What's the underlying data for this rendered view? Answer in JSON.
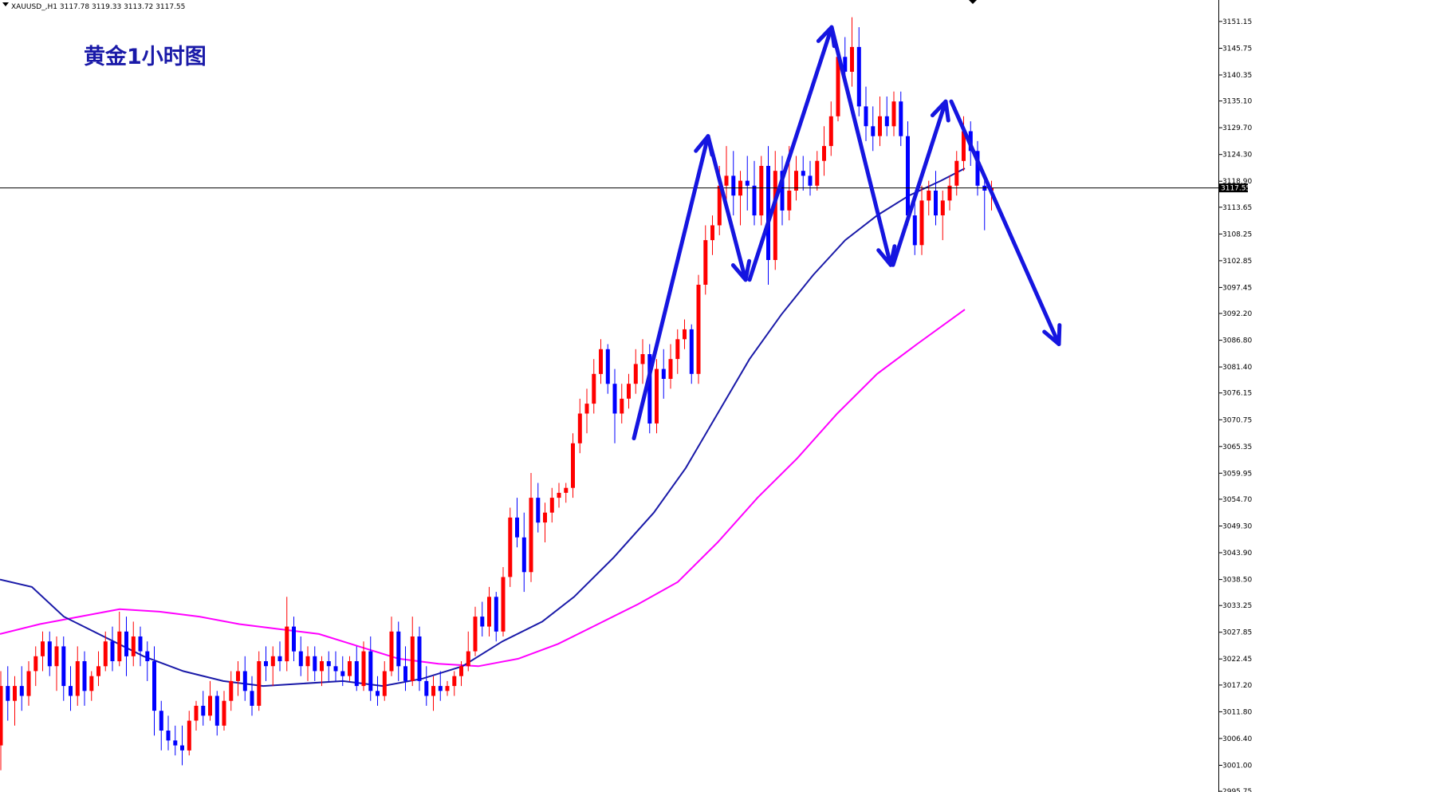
{
  "header": {
    "symbol": "XAUUSD_,H1",
    "open": "3117.78",
    "high": "3119.33",
    "low": "3113.72",
    "close": "3117.55"
  },
  "chart_data": {
    "type": "candlestick",
    "title": "黄金1小时图",
    "ylim": [
      2998.5,
      3155.0
    ],
    "y_tick_labels": [
      "3151.15",
      "3145.75",
      "3140.35",
      "3135.10",
      "3129.70",
      "3124.30",
      "3118.90",
      "3113.65",
      "3108.25",
      "3102.85",
      "3097.45",
      "3092.20",
      "3086.80",
      "3081.40",
      "3076.15",
      "3070.75",
      "3065.35",
      "3059.95",
      "3054.70",
      "3049.30",
      "3043.90",
      "3038.50",
      "3033.25",
      "3027.85",
      "3022.45",
      "3017.20",
      "3011.80",
      "3006.40",
      "3001.00",
      "2995.75"
    ],
    "current_price": 3117.55,
    "current_price_label": "3117.55",
    "colors": {
      "up": "#ff0000",
      "down": "#0000ff",
      "ma_fast": "#1a1aa8",
      "ma_slow": "#ff00ff",
      "arrows": "#1515e0",
      "title": "#1a1aa8"
    },
    "candles": [
      [
        3005,
        3020,
        3000,
        3017
      ],
      [
        3017,
        3021,
        3010,
        3014
      ],
      [
        3014,
        3019,
        3009,
        3017
      ],
      [
        3017,
        3021,
        3012,
        3015
      ],
      [
        3015,
        3022,
        3013,
        3020
      ],
      [
        3020,
        3025,
        3017,
        3023
      ],
      [
        3023,
        3028,
        3020,
        3026
      ],
      [
        3026,
        3028,
        3019,
        3021
      ],
      [
        3021,
        3027,
        3016,
        3025
      ],
      [
        3025,
        3027,
        3014,
        3017
      ],
      [
        3017,
        3021,
        3012,
        3015
      ],
      [
        3015,
        3025,
        3013,
        3022
      ],
      [
        3022,
        3024,
        3013,
        3016
      ],
      [
        3016,
        3020,
        3014,
        3019
      ],
      [
        3019,
        3024,
        3017,
        3021
      ],
      [
        3021,
        3028,
        3020,
        3026
      ],
      [
        3026,
        3029,
        3020,
        3022
      ],
      [
        3022,
        3032,
        3021,
        3028
      ],
      [
        3028,
        3031,
        3019,
        3023
      ],
      [
        3023,
        3030,
        3021,
        3027
      ],
      [
        3027,
        3029,
        3021,
        3024
      ],
      [
        3024,
        3026,
        3018,
        3022
      ],
      [
        3022,
        3025,
        3007,
        3012
      ],
      [
        3012,
        3014,
        3004,
        3008
      ],
      [
        3008,
        3011,
        3004,
        3006
      ],
      [
        3006,
        3009,
        3003,
        3005
      ],
      [
        3005,
        3009,
        3001,
        3004
      ],
      [
        3004,
        3012,
        3003,
        3010
      ],
      [
        3010,
        3014,
        3008,
        3013
      ],
      [
        3013,
        3016,
        3009,
        3011
      ],
      [
        3011,
        3018,
        3010,
        3015
      ],
      [
        3015,
        3016,
        3007,
        3009
      ],
      [
        3009,
        3016,
        3008,
        3014
      ],
      [
        3014,
        3020,
        3012,
        3018
      ],
      [
        3018,
        3022,
        3015,
        3020
      ],
      [
        3020,
        3023,
        3014,
        3016
      ],
      [
        3016,
        3019,
        3011,
        3013
      ],
      [
        3013,
        3024,
        3012,
        3022
      ],
      [
        3022,
        3025,
        3018,
        3021
      ],
      [
        3021,
        3025,
        3017,
        3023
      ],
      [
        3023,
        3026,
        3020,
        3022
      ],
      [
        3022,
        3035,
        3020,
        3029
      ],
      [
        3029,
        3031,
        3022,
        3024
      ],
      [
        3024,
        3027,
        3019,
        3021
      ],
      [
        3021,
        3025,
        3018,
        3023
      ],
      [
        3023,
        3025,
        3018,
        3020
      ],
      [
        3020,
        3023,
        3017,
        3022
      ],
      [
        3022,
        3024,
        3018,
        3021
      ],
      [
        3021,
        3024,
        3018,
        3020
      ],
      [
        3020,
        3023,
        3017,
        3019
      ],
      [
        3019,
        3023,
        3018,
        3022
      ],
      [
        3022,
        3025,
        3016,
        3017
      ],
      [
        3017,
        3026,
        3016,
        3024
      ],
      [
        3024,
        3027,
        3014,
        3016
      ],
      [
        3016,
        3019,
        3013,
        3015
      ],
      [
        3015,
        3022,
        3014,
        3020
      ],
      [
        3020,
        3031,
        3019,
        3028
      ],
      [
        3028,
        3030,
        3018,
        3021
      ],
      [
        3021,
        3025,
        3016,
        3018
      ],
      [
        3018,
        3031,
        3017,
        3027
      ],
      [
        3027,
        3029,
        3016,
        3018
      ],
      [
        3018,
        3021,
        3013,
        3015
      ],
      [
        3015,
        3019,
        3012,
        3017
      ],
      [
        3017,
        3020,
        3014,
        3016
      ],
      [
        3016,
        3018,
        3015,
        3017
      ],
      [
        3017,
        3020,
        3015,
        3019
      ],
      [
        3019,
        3022,
        3017,
        3021
      ],
      [
        3021,
        3028,
        3020,
        3024
      ],
      [
        3024,
        3033,
        3023,
        3031
      ],
      [
        3031,
        3034,
        3027,
        3029
      ],
      [
        3029,
        3037,
        3027,
        3035
      ],
      [
        3035,
        3036,
        3026,
        3028
      ],
      [
        3028,
        3041,
        3027,
        3039
      ],
      [
        3039,
        3053,
        3037,
        3051
      ],
      [
        3051,
        3055,
        3045,
        3047
      ],
      [
        3047,
        3052,
        3036,
        3040
      ],
      [
        3040,
        3060,
        3038,
        3055
      ],
      [
        3055,
        3058,
        3048,
        3050
      ],
      [
        3050,
        3054,
        3046,
        3052
      ],
      [
        3052,
        3057,
        3050,
        3055
      ],
      [
        3055,
        3058,
        3053,
        3056
      ],
      [
        3056,
        3058,
        3054,
        3057
      ],
      [
        3057,
        3068,
        3055,
        3066
      ],
      [
        3066,
        3075,
        3064,
        3072
      ],
      [
        3072,
        3077,
        3068,
        3074
      ],
      [
        3074,
        3083,
        3072,
        3080
      ],
      [
        3080,
        3087,
        3078,
        3085
      ],
      [
        3085,
        3086,
        3076,
        3078
      ],
      [
        3078,
        3081,
        3066,
        3072
      ],
      [
        3072,
        3078,
        3070,
        3075
      ],
      [
        3075,
        3080,
        3073,
        3078
      ],
      [
        3078,
        3085,
        3076,
        3082
      ],
      [
        3082,
        3087,
        3078,
        3084
      ],
      [
        3084,
        3086,
        3068,
        3070
      ],
      [
        3070,
        3083,
        3068,
        3081
      ],
      [
        3081,
        3085,
        3075,
        3079
      ],
      [
        3079,
        3086,
        3077,
        3083
      ],
      [
        3083,
        3089,
        3080,
        3087
      ],
      [
        3087,
        3091,
        3085,
        3089
      ],
      [
        3089,
        3090,
        3078,
        3080
      ],
      [
        3080,
        3100,
        3078,
        3098
      ],
      [
        3098,
        3110,
        3096,
        3107
      ],
      [
        3107,
        3112,
        3104,
        3110
      ],
      [
        3110,
        3122,
        3108,
        3118
      ],
      [
        3118,
        3126,
        3114,
        3120
      ],
      [
        3120,
        3125,
        3112,
        3116
      ],
      [
        3116,
        3121,
        3110,
        3119
      ],
      [
        3119,
        3124,
        3113,
        3118
      ],
      [
        3118,
        3123,
        3110,
        3112
      ],
      [
        3112,
        3124,
        3110,
        3122
      ],
      [
        3122,
        3126,
        3098,
        3103
      ],
      [
        3103,
        3125,
        3101,
        3121
      ],
      [
        3121,
        3124,
        3110,
        3113
      ],
      [
        3113,
        3126,
        3111,
        3117
      ],
      [
        3117,
        3124,
        3115,
        3121
      ],
      [
        3121,
        3124,
        3117,
        3120
      ],
      [
        3120,
        3123,
        3116,
        3118
      ],
      [
        3118,
        3125,
        3117,
        3123
      ],
      [
        3123,
        3130,
        3120,
        3126
      ],
      [
        3126,
        3135,
        3124,
        3132
      ],
      [
        3132,
        3146,
        3131,
        3144
      ],
      [
        3144,
        3148,
        3138,
        3141
      ],
      [
        3141,
        3152,
        3138,
        3146
      ],
      [
        3146,
        3150,
        3132,
        3134
      ],
      [
        3134,
        3138,
        3127,
        3130
      ],
      [
        3130,
        3134,
        3125,
        3128
      ],
      [
        3128,
        3136,
        3126,
        3132
      ],
      [
        3132,
        3136,
        3128,
        3130
      ],
      [
        3130,
        3137,
        3128,
        3135
      ],
      [
        3135,
        3137,
        3126,
        3128
      ],
      [
        3128,
        3131,
        3110,
        3112
      ],
      [
        3112,
        3116,
        3104,
        3106
      ],
      [
        3106,
        3118,
        3104,
        3115
      ],
      [
        3115,
        3119,
        3112,
        3117
      ],
      [
        3117,
        3121,
        3110,
        3112
      ],
      [
        3112,
        3117,
        3107,
        3115
      ],
      [
        3115,
        3120,
        3113,
        3118
      ],
      [
        3118,
        3125,
        3116,
        3123
      ],
      [
        3123,
        3132,
        3121,
        3129
      ],
      [
        3129,
        3131,
        3122,
        3125
      ],
      [
        3125,
        3127,
        3116,
        3118
      ],
      [
        3118,
        3120,
        3109,
        3117
      ],
      [
        3117,
        3119,
        3113,
        3117.55
      ]
    ],
    "ma_fast": [
      [
        0,
        3038.5
      ],
      [
        40,
        3037
      ],
      [
        80,
        3031
      ],
      [
        130,
        3027
      ],
      [
        180,
        3023
      ],
      [
        230,
        3020
      ],
      [
        280,
        3018
      ],
      [
        330,
        3017
      ],
      [
        380,
        3017.5
      ],
      [
        430,
        3018
      ],
      [
        480,
        3017
      ],
      [
        530,
        3018.5
      ],
      [
        580,
        3021
      ],
      [
        630,
        3026
      ],
      [
        680,
        3030
      ],
      [
        720,
        3035
      ],
      [
        770,
        3043
      ],
      [
        820,
        3052
      ],
      [
        860,
        3061
      ],
      [
        900,
        3072
      ],
      [
        940,
        3083
      ],
      [
        980,
        3092
      ],
      [
        1020,
        3100
      ],
      [
        1060,
        3107
      ],
      [
        1100,
        3112
      ],
      [
        1140,
        3116
      ],
      [
        1180,
        3119
      ],
      [
        1210,
        3121.5
      ]
    ],
    "ma_slow": [
      [
        0,
        3027.5
      ],
      [
        50,
        3029.5
      ],
      [
        100,
        3031
      ],
      [
        150,
        3032.5
      ],
      [
        200,
        3032
      ],
      [
        250,
        3031
      ],
      [
        300,
        3029.5
      ],
      [
        350,
        3028.5
      ],
      [
        400,
        3027.5
      ],
      [
        450,
        3025
      ],
      [
        500,
        3022.5
      ],
      [
        550,
        3021.5
      ],
      [
        600,
        3021
      ],
      [
        650,
        3022.5
      ],
      [
        700,
        3025.5
      ],
      [
        750,
        3029.5
      ],
      [
        800,
        3033.5
      ],
      [
        850,
        3038
      ],
      [
        900,
        3046
      ],
      [
        950,
        3055
      ],
      [
        1000,
        3063
      ],
      [
        1050,
        3072
      ],
      [
        1100,
        3080
      ],
      [
        1150,
        3086
      ],
      [
        1210,
        3093
      ]
    ],
    "arrows": [
      [
        [
          795,
          3067
        ],
        [
          888,
          3128
        ]
      ],
      [
        [
          888,
          3128
        ],
        [
          935,
          3099
        ]
      ],
      [
        [
          940,
          3099
        ],
        [
          1043,
          3150
        ]
      ],
      [
        [
          1043,
          3150
        ],
        [
          1117,
          3102
        ]
      ],
      [
        [
          1120,
          3102
        ],
        [
          1186,
          3135
        ]
      ],
      [
        [
          1193,
          3135
        ],
        [
          1328,
          3086
        ]
      ]
    ]
  }
}
